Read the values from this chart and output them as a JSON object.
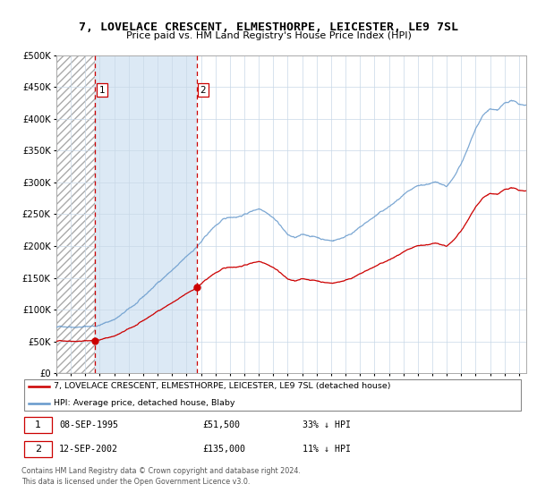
{
  "title": "7, LOVELACE CRESCENT, ELMESTHORPE, LEICESTER, LE9 7SL",
  "subtitle": "Price paid vs. HM Land Registry's House Price Index (HPI)",
  "point1_year": 1995.69,
  "point1_price": 51500,
  "point2_year": 2002.7,
  "point2_price": 135000,
  "legend_line1": "7, LOVELACE CRESCENT, ELMESTHORPE, LEICESTER, LE9 7SL (detached house)",
  "legend_line2": "HPI: Average price, detached house, Blaby",
  "footer": "Contains HM Land Registry data © Crown copyright and database right 2024.\nThis data is licensed under the Open Government Licence v3.0.",
  "line_red": "#cc0000",
  "line_blue": "#6699cc",
  "bg_color": "#dce9f5",
  "ylim": [
    0,
    500000
  ],
  "yticks": [
    0,
    50000,
    100000,
    150000,
    200000,
    250000,
    300000,
    350000,
    400000,
    450000,
    500000
  ],
  "xmin": 1993.0,
  "xmax": 2025.5,
  "hpi_years": [
    1993.0,
    1993.5,
    1994.0,
    1994.5,
    1995.0,
    1995.5,
    1995.69,
    1996.0,
    1996.5,
    1997.0,
    1997.5,
    1998.0,
    1998.5,
    1999.0,
    1999.5,
    2000.0,
    2000.5,
    2001.0,
    2001.5,
    2002.0,
    2002.5,
    2002.7,
    2003.0,
    2003.5,
    2004.0,
    2004.5,
    2005.0,
    2005.5,
    2006.0,
    2006.5,
    2007.0,
    2007.5,
    2008.0,
    2008.5,
    2009.0,
    2009.5,
    2010.0,
    2010.5,
    2011.0,
    2011.5,
    2012.0,
    2012.5,
    2013.0,
    2013.5,
    2014.0,
    2014.5,
    2015.0,
    2015.5,
    2016.0,
    2016.5,
    2017.0,
    2017.5,
    2018.0,
    2018.5,
    2019.0,
    2019.5,
    2020.0,
    2020.5,
    2021.0,
    2021.5,
    2022.0,
    2022.5,
    2023.0,
    2023.5,
    2024.0,
    2024.5,
    2025.0
  ],
  "hpi_values": [
    72000,
    73500,
    74500,
    75500,
    76000,
    76800,
    77200,
    79000,
    83000,
    88000,
    95000,
    103000,
    111000,
    120000,
    131000,
    142000,
    153000,
    163000,
    172000,
    182000,
    193000,
    198000,
    205000,
    218000,
    230000,
    238000,
    242000,
    244000,
    248000,
    253000,
    258000,
    255000,
    247000,
    235000,
    220000,
    215000,
    218000,
    217000,
    215000,
    212000,
    210000,
    213000,
    218000,
    225000,
    232000,
    240000,
    248000,
    255000,
    262000,
    270000,
    278000,
    283000,
    288000,
    290000,
    293000,
    292000,
    288000,
    300000,
    320000,
    345000,
    375000,
    395000,
    405000,
    400000,
    410000,
    415000,
    408000
  ]
}
